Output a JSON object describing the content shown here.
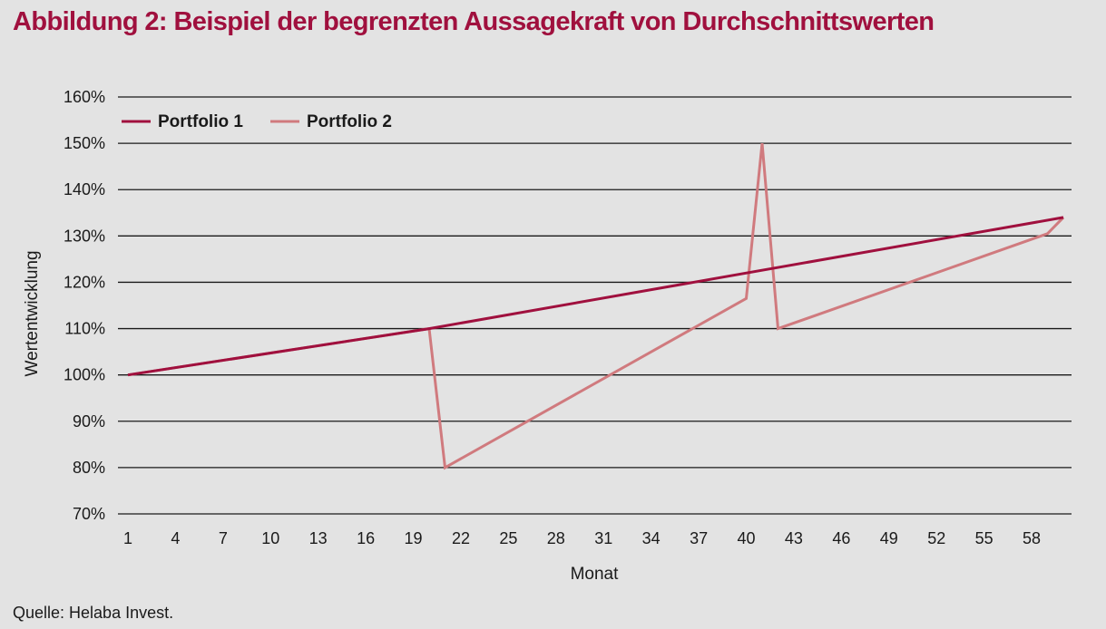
{
  "figure": {
    "title": "Abbildung 2: Beispiel der begrenzten Aussagekraft von Durchschnittswerten",
    "source": "Quelle: Helaba Invest."
  },
  "chart_data": {
    "type": "line",
    "title": "Abbildung 2: Beispiel der begrenzten Aussagekraft von Durchschnittswerten",
    "xlabel": "Monat",
    "ylabel": "Wertentwicklung",
    "x_ticks": [
      1,
      4,
      7,
      10,
      13,
      16,
      19,
      22,
      25,
      28,
      31,
      34,
      37,
      40,
      43,
      46,
      49,
      52,
      55,
      58
    ],
    "xlim": [
      1,
      60
    ],
    "y_ticks": [
      "70%",
      "80%",
      "90%",
      "100%",
      "110%",
      "120%",
      "130%",
      "140%",
      "150%",
      "160%"
    ],
    "ylim": [
      70,
      160
    ],
    "grid": true,
    "legend_position": "top-left",
    "series": [
      {
        "name": "Portfolio 1",
        "color": "#a0103e",
        "points": [
          [
            1,
            100
          ],
          [
            20,
            110
          ],
          [
            60,
            134
          ]
        ]
      },
      {
        "name": "Portfolio 2",
        "color": "#d07a7e",
        "points": [
          [
            1,
            100
          ],
          [
            20,
            110
          ],
          [
            21,
            80
          ],
          [
            40,
            116.5
          ],
          [
            41,
            150
          ],
          [
            42,
            110
          ],
          [
            59,
            130.5
          ],
          [
            60,
            134
          ]
        ]
      }
    ]
  }
}
